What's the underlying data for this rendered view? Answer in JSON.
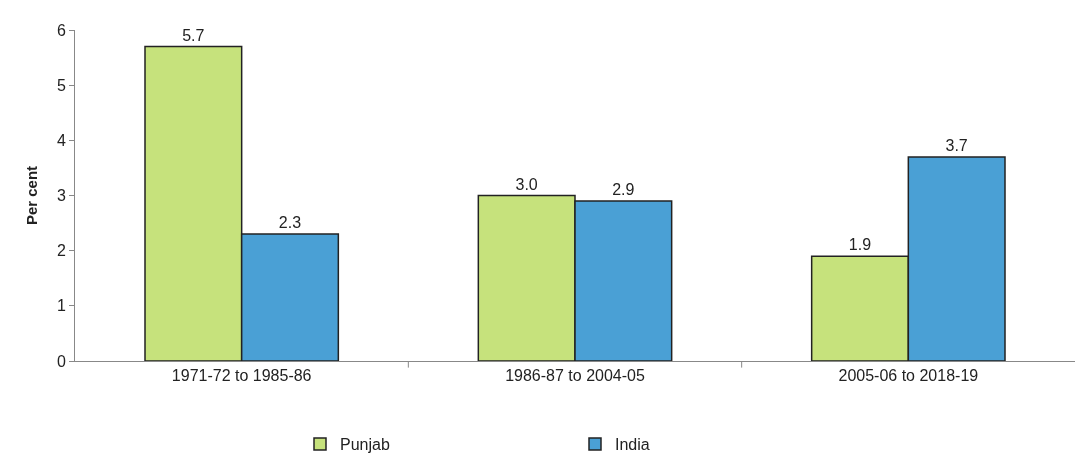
{
  "chart_data": {
    "type": "bar",
    "ylabel": "Per cent",
    "categories": [
      "1971-72 to 1985-86",
      "1986-87 to 2004-05",
      "2005-06 to 2018-19"
    ],
    "series": [
      {
        "name": "Punjab",
        "color": "#c6e27c",
        "values": [
          5.7,
          3.0,
          1.9
        ],
        "value_labels": [
          "5.7",
          "3.0",
          "1.9"
        ]
      },
      {
        "name": "India",
        "color": "#4aa0d5",
        "values": [
          2.3,
          2.9,
          3.7
        ],
        "value_labels": [
          "2.3",
          "2.9",
          "3.7"
        ]
      }
    ],
    "ylim": [
      0,
      6
    ],
    "yticks": [
      0,
      1,
      2,
      3,
      4,
      5,
      6
    ],
    "grid": false,
    "legend": "bottom"
  }
}
